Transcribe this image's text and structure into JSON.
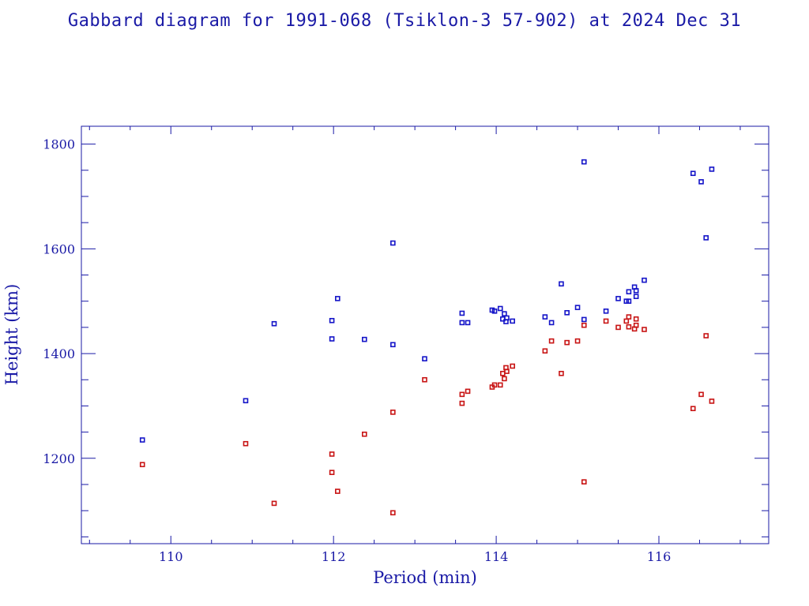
{
  "chart_data": {
    "type": "scatter",
    "title": "Gabbard diagram for 1991-068 (Tsiklon-3 57-902) at 2024 Dec 31",
    "xlabel": "Period (min)",
    "ylabel": "Height (km)",
    "xlim": [
      108.9,
      117.35
    ],
    "ylim": [
      1037,
      1834
    ],
    "xticks": [
      110,
      112,
      114,
      116
    ],
    "yticks": [
      1200,
      1400,
      1600,
      1800
    ],
    "grid": false,
    "colors": {
      "frame": "#1a1aa6",
      "apogee": "#1414c8",
      "perigee": "#c81414"
    },
    "series": [
      {
        "key": "apogee",
        "points": [
          [
            109.65,
            1235
          ],
          [
            110.92,
            1310
          ],
          [
            111.27,
            1457
          ],
          [
            111.98,
            1463
          ],
          [
            111.98,
            1428
          ],
          [
            112.05,
            1505
          ],
          [
            112.38,
            1427
          ],
          [
            112.73,
            1611
          ],
          [
            112.73,
            1417
          ],
          [
            113.12,
            1390
          ],
          [
            113.58,
            1477
          ],
          [
            113.58,
            1459
          ],
          [
            113.65,
            1459
          ],
          [
            113.95,
            1483
          ],
          [
            113.98,
            1481
          ],
          [
            114.05,
            1486
          ],
          [
            114.08,
            1466
          ],
          [
            114.1,
            1476
          ],
          [
            114.13,
            1468
          ],
          [
            114.12,
            1461
          ],
          [
            114.2,
            1462
          ],
          [
            114.6,
            1470
          ],
          [
            114.68,
            1459
          ],
          [
            114.8,
            1533
          ],
          [
            114.87,
            1478
          ],
          [
            115.0,
            1488
          ],
          [
            115.08,
            1465
          ],
          [
            115.08,
            1766
          ],
          [
            115.35,
            1481
          ],
          [
            115.5,
            1505
          ],
          [
            115.6,
            1500
          ],
          [
            115.63,
            1500
          ],
          [
            115.63,
            1518
          ],
          [
            115.7,
            1527
          ],
          [
            115.72,
            1520
          ],
          [
            115.72,
            1509
          ],
          [
            115.82,
            1540
          ],
          [
            116.42,
            1744
          ],
          [
            116.52,
            1728
          ],
          [
            116.58,
            1621
          ],
          [
            116.65,
            1752
          ]
        ]
      },
      {
        "key": "perigee",
        "points": [
          [
            109.65,
            1188
          ],
          [
            110.92,
            1228
          ],
          [
            111.27,
            1114
          ],
          [
            111.98,
            1208
          ],
          [
            111.98,
            1173
          ],
          [
            112.05,
            1137
          ],
          [
            112.38,
            1246
          ],
          [
            112.73,
            1288
          ],
          [
            112.73,
            1096
          ],
          [
            113.12,
            1350
          ],
          [
            113.58,
            1322
          ],
          [
            113.58,
            1305
          ],
          [
            113.65,
            1328
          ],
          [
            113.95,
            1336
          ],
          [
            113.98,
            1340
          ],
          [
            114.05,
            1340
          ],
          [
            114.08,
            1362
          ],
          [
            114.1,
            1352
          ],
          [
            114.13,
            1366
          ],
          [
            114.12,
            1373
          ],
          [
            114.2,
            1376
          ],
          [
            114.6,
            1405
          ],
          [
            114.68,
            1424
          ],
          [
            114.8,
            1362
          ],
          [
            114.87,
            1421
          ],
          [
            115.0,
            1424
          ],
          [
            115.08,
            1454
          ],
          [
            115.08,
            1155
          ],
          [
            115.35,
            1462
          ],
          [
            115.5,
            1450
          ],
          [
            115.6,
            1462
          ],
          [
            115.63,
            1451
          ],
          [
            115.63,
            1470
          ],
          [
            115.7,
            1447
          ],
          [
            115.72,
            1454
          ],
          [
            115.72,
            1466
          ],
          [
            115.82,
            1446
          ],
          [
            116.42,
            1295
          ],
          [
            116.52,
            1322
          ],
          [
            116.58,
            1434
          ],
          [
            116.65,
            1309
          ]
        ]
      }
    ]
  }
}
